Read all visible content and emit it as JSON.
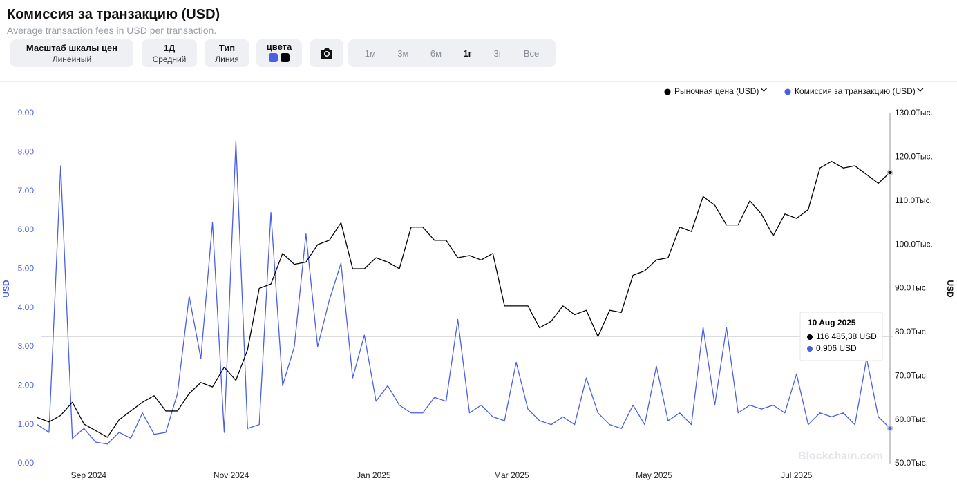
{
  "ui": {
    "title": "Комиссия за транзакцию (USD)",
    "subtitle": "Average transaction fees in USD per transaction.",
    "controls": [
      {
        "label": "Масштаб шкалы цен",
        "value": "Линейный"
      },
      {
        "label": "1Д",
        "value": "Средний"
      },
      {
        "label": "Тип",
        "value": "Линия"
      }
    ],
    "colors_label": "цвета",
    "ranges": [
      {
        "label": "1м"
      },
      {
        "label": "3м"
      },
      {
        "label": "6м"
      },
      {
        "label": "1г",
        "selected": true
      },
      {
        "label": "3г"
      },
      {
        "label": "Все"
      }
    ],
    "watermark": "Blockchain.com"
  },
  "chart_data": {
    "type": "line",
    "x": [
      "2024-08-10",
      "2024-08-15",
      "2024-08-20",
      "2024-08-25",
      "2024-08-30",
      "2024-09-04",
      "2024-09-09",
      "2024-09-14",
      "2024-09-19",
      "2024-09-24",
      "2024-09-29",
      "2024-10-04",
      "2024-10-09",
      "2024-10-14",
      "2024-10-19",
      "2024-10-24",
      "2024-10-29",
      "2024-11-03",
      "2024-11-08",
      "2024-11-13",
      "2024-11-18",
      "2024-11-23",
      "2024-11-28",
      "2024-12-03",
      "2024-12-08",
      "2024-12-13",
      "2024-12-18",
      "2024-12-23",
      "2024-12-28",
      "2025-01-02",
      "2025-01-07",
      "2025-01-12",
      "2025-01-17",
      "2025-01-22",
      "2025-01-27",
      "2025-02-01",
      "2025-02-06",
      "2025-02-11",
      "2025-02-16",
      "2025-02-21",
      "2025-02-26",
      "2025-03-03",
      "2025-03-08",
      "2025-03-13",
      "2025-03-18",
      "2025-03-23",
      "2025-03-28",
      "2025-04-02",
      "2025-04-07",
      "2025-04-12",
      "2025-04-17",
      "2025-04-22",
      "2025-04-27",
      "2025-05-02",
      "2025-05-07",
      "2025-05-12",
      "2025-05-17",
      "2025-05-22",
      "2025-05-27",
      "2025-06-01",
      "2025-06-06",
      "2025-06-11",
      "2025-06-16",
      "2025-06-21",
      "2025-06-26",
      "2025-07-01",
      "2025-07-06",
      "2025-07-11",
      "2025-07-16",
      "2025-07-21",
      "2025-07-26",
      "2025-07-31",
      "2025-08-05",
      "2025-08-10"
    ],
    "xlim": [
      "2024-08-10",
      "2025-08-10"
    ],
    "xticks": [
      {
        "value": "2024-09-01",
        "label": "Sep 2024"
      },
      {
        "value": "2024-11-01",
        "label": "Nov 2024"
      },
      {
        "value": "2025-01-01",
        "label": "Jan 2025"
      },
      {
        "value": "2025-03-01",
        "label": "Mar 2025"
      },
      {
        "value": "2025-05-01",
        "label": "May 2025"
      },
      {
        "value": "2025-07-01",
        "label": "Jul 2025"
      }
    ],
    "ylabel": "USD",
    "y2label": "USD",
    "ylim": [
      0,
      9
    ],
    "yticks": [
      {
        "value": 0,
        "label": "0.00"
      },
      {
        "value": 1,
        "label": "1.00"
      },
      {
        "value": 2,
        "label": "2.00"
      },
      {
        "value": 3,
        "label": "3.00"
      },
      {
        "value": 4,
        "label": "4.00"
      },
      {
        "value": 5,
        "label": "5.00"
      },
      {
        "value": 6,
        "label": "6.00"
      },
      {
        "value": 7,
        "label": "7.00"
      },
      {
        "value": 8,
        "label": "8.00"
      },
      {
        "value": 9,
        "label": "9.00"
      }
    ],
    "y2lim": [
      50000,
      130000
    ],
    "y2ticks": [
      {
        "value": 50000,
        "label": "50.0Тыс."
      },
      {
        "value": 60000,
        "label": "60.0Тыс."
      },
      {
        "value": 70000,
        "label": "70.0Тыс."
      },
      {
        "value": 80000,
        "label": "80.0Тыс."
      },
      {
        "value": 90000,
        "label": "90.0Тыс."
      },
      {
        "value": 100000,
        "label": "100.0Тыс."
      },
      {
        "value": 110000,
        "label": "110.0Тыс."
      },
      {
        "value": 120000,
        "label": "120.0Тыс."
      },
      {
        "value": 130000,
        "label": "130.0Тыс."
      }
    ],
    "grid": false,
    "legend": "top-right",
    "series": [
      {
        "name": "Рыночная цена (USD)",
        "color": "#000000",
        "axis": "y2",
        "values": [
          60500,
          59500,
          61000,
          64000,
          59000,
          57500,
          56000,
          60000,
          62000,
          64000,
          65500,
          62000,
          62000,
          66000,
          68500,
          67500,
          72000,
          69000,
          76000,
          90000,
          91000,
          98000,
          95500,
          96000,
          100000,
          101000,
          105000,
          94500,
          94500,
          97000,
          96000,
          94500,
          104000,
          104000,
          101000,
          101000,
          97000,
          97500,
          96500,
          98000,
          86000,
          86000,
          86000,
          81000,
          82500,
          86000,
          84000,
          85000,
          79000,
          85000,
          84500,
          93000,
          94000,
          96500,
          97000,
          104000,
          103000,
          111000,
          109000,
          104500,
          104500,
          110000,
          107000,
          102000,
          107000,
          106000,
          108000,
          117500,
          119000,
          117500,
          118000,
          116000,
          114000,
          116485.38
        ]
      },
      {
        "name": "Комиссия за транзакцию (USD)",
        "color": "#4b5fe3",
        "values": [
          1.0,
          0.8,
          7.65,
          0.65,
          0.9,
          0.55,
          0.5,
          0.8,
          0.65,
          1.3,
          0.75,
          0.8,
          1.8,
          4.3,
          2.7,
          6.2,
          0.8,
          8.28,
          0.9,
          1.0,
          6.45,
          2.0,
          3.0,
          5.9,
          3.0,
          4.2,
          5.15,
          2.2,
          3.3,
          1.6,
          2.0,
          1.5,
          1.3,
          1.3,
          1.7,
          1.6,
          3.7,
          1.3,
          1.5,
          1.2,
          1.1,
          2.6,
          1.4,
          1.1,
          1.0,
          1.2,
          1.0,
          2.2,
          1.3,
          1.0,
          0.9,
          1.5,
          1.0,
          2.5,
          1.1,
          1.3,
          1.0,
          3.5,
          1.5,
          3.5,
          1.3,
          1.5,
          1.4,
          1.5,
          1.3,
          2.3,
          1.0,
          1.3,
          1.2,
          1.3,
          1.0,
          2.7,
          1.2,
          0.906
        ]
      }
    ],
    "tooltip": {
      "title": "10 Aug 2025",
      "lines": [
        "116 485,38 USD",
        "0,906 USD"
      ]
    }
  }
}
